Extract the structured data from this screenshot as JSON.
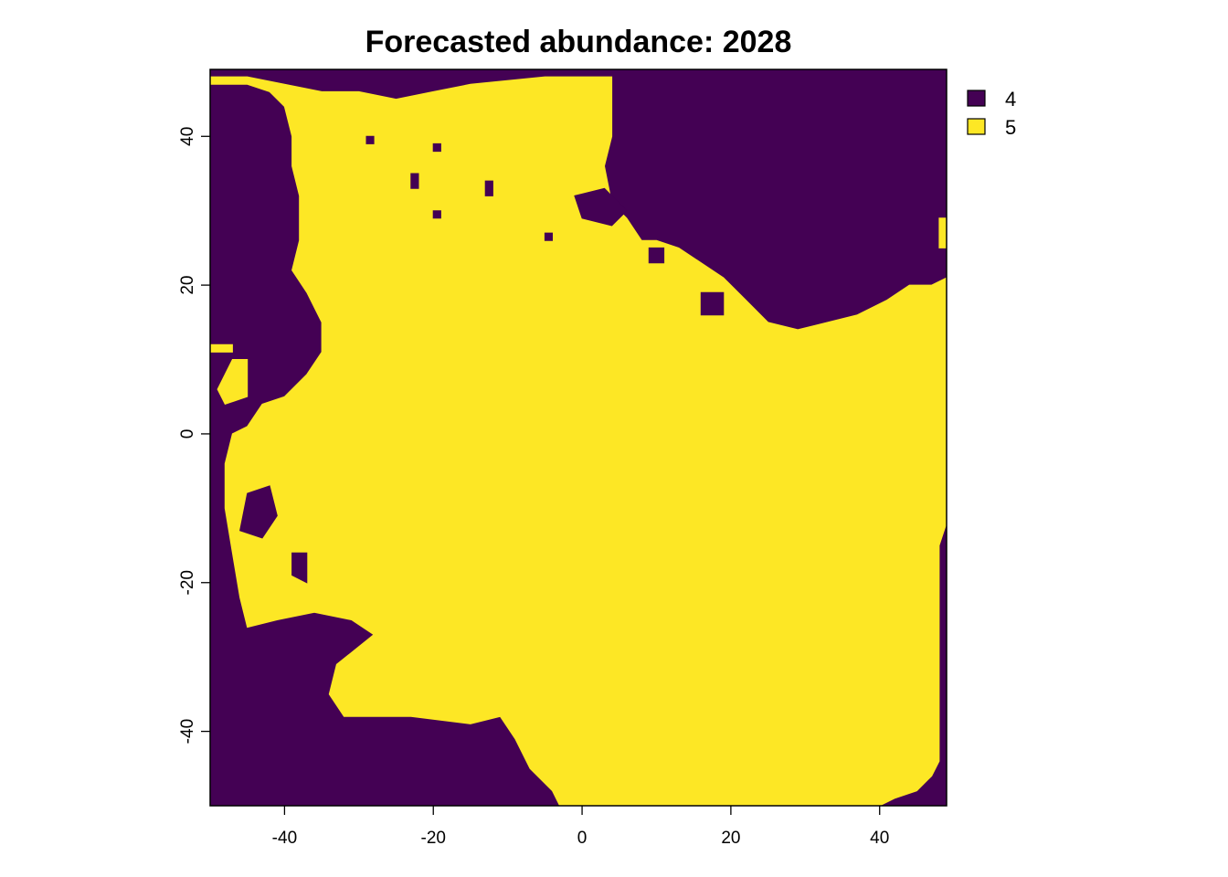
{
  "chart_data": {
    "type": "heatmap",
    "title": "Forecasted abundance: 2028",
    "xlabel": "",
    "ylabel": "",
    "xlim": [
      -50,
      49
    ],
    "ylim": [
      -50,
      49
    ],
    "x_ticks": [
      -40,
      -20,
      0,
      20,
      40
    ],
    "y_ticks": [
      -40,
      -20,
      0,
      20,
      40
    ],
    "legend_position": "top-right",
    "grid": false,
    "colors": {
      "4": "#440154",
      "5": "#FDE725"
    },
    "legend": [
      {
        "value": "4",
        "label": "4",
        "color": "#440154"
      },
      {
        "value": "5",
        "label": "5",
        "color": "#FDE725"
      }
    ],
    "background_value": "4",
    "regions_value_5": [
      {
        "name": "main-region",
        "outline": [
          [
            -50,
            47
          ],
          [
            -45,
            47
          ],
          [
            -42,
            46
          ],
          [
            -40,
            44
          ],
          [
            -39,
            40
          ],
          [
            -39,
            36
          ],
          [
            -38,
            32
          ],
          [
            -38,
            26
          ],
          [
            -39,
            22
          ],
          [
            -37,
            19
          ],
          [
            -35,
            15
          ],
          [
            -35,
            11
          ],
          [
            -37,
            8
          ],
          [
            -40,
            5
          ],
          [
            -43,
            4
          ],
          [
            -45,
            1
          ],
          [
            -47,
            0
          ],
          [
            -48,
            -4
          ],
          [
            -48,
            -10
          ],
          [
            -47,
            -16
          ],
          [
            -46,
            -22
          ],
          [
            -45,
            -26
          ],
          [
            -41,
            -25
          ],
          [
            -36,
            -24
          ],
          [
            -31,
            -25
          ],
          [
            -28,
            -27
          ],
          [
            -33,
            -31
          ],
          [
            -34,
            -35
          ],
          [
            -32,
            -38
          ],
          [
            -29,
            -38
          ],
          [
            -23,
            -38
          ],
          [
            -15,
            -39
          ],
          [
            -11,
            -38
          ],
          [
            -9,
            -41
          ],
          [
            -7,
            -45
          ],
          [
            -4,
            -48
          ],
          [
            -3,
            -50
          ],
          [
            40,
            -50
          ],
          [
            42,
            -49
          ],
          [
            45,
            -48
          ],
          [
            47,
            -46
          ],
          [
            48,
            -44
          ],
          [
            48,
            -36
          ],
          [
            48,
            -29
          ],
          [
            48,
            -22
          ],
          [
            48,
            -15
          ],
          [
            49,
            -12
          ],
          [
            49,
            8
          ],
          [
            49,
            21
          ],
          [
            47,
            20
          ],
          [
            44,
            20
          ],
          [
            41,
            18
          ],
          [
            37,
            16
          ],
          [
            33,
            15
          ],
          [
            29,
            14
          ],
          [
            25,
            15
          ],
          [
            22,
            18
          ],
          [
            19,
            21
          ],
          [
            16,
            23
          ],
          [
            13,
            25
          ],
          [
            10,
            26
          ],
          [
            8,
            26
          ],
          [
            6,
            29
          ],
          [
            4,
            31
          ],
          [
            3,
            36
          ],
          [
            4,
            40
          ],
          [
            4,
            45
          ],
          [
            4,
            48
          ],
          [
            -5,
            48
          ],
          [
            -15,
            47
          ],
          [
            -20,
            46
          ],
          [
            -25,
            45
          ],
          [
            -30,
            46
          ],
          [
            -35,
            46
          ],
          [
            -40,
            47
          ],
          [
            -45,
            48
          ],
          [
            -50,
            48
          ]
        ]
      },
      {
        "name": "north-east-strip",
        "outline": [
          [
            48,
            29
          ],
          [
            49,
            29
          ],
          [
            49,
            25
          ],
          [
            48,
            25
          ]
        ]
      },
      {
        "name": "west-strip",
        "outline": [
          [
            -50,
            12
          ],
          [
            -47,
            12
          ],
          [
            -47,
            11
          ],
          [
            -50,
            11
          ]
        ]
      },
      {
        "name": "west-pocket",
        "outline": [
          [
            -47,
            10
          ],
          [
            -45,
            10
          ],
          [
            -45,
            5
          ],
          [
            -48,
            4
          ],
          [
            -49,
            6
          ]
        ]
      }
    ],
    "regions_value_4": [
      {
        "name": "south-west-inlet",
        "outline": [
          [
            -45,
            -8
          ],
          [
            -42,
            -7
          ],
          [
            -41,
            -11
          ],
          [
            -43,
            -14
          ],
          [
            -46,
            -13
          ]
        ]
      },
      {
        "name": "south-west-inlet-2",
        "outline": [
          [
            -39,
            -16
          ],
          [
            -37,
            -16
          ],
          [
            -37,
            -20
          ],
          [
            -39,
            -19
          ]
        ]
      },
      {
        "name": "north-hole-1",
        "outline": [
          [
            -29,
            40
          ],
          [
            -28,
            40
          ],
          [
            -28,
            39
          ],
          [
            -29,
            39
          ]
        ]
      },
      {
        "name": "north-hole-2",
        "outline": [
          [
            -20,
            39
          ],
          [
            -19,
            39
          ],
          [
            -19,
            38
          ],
          [
            -20,
            38
          ]
        ]
      },
      {
        "name": "north-hole-3",
        "outline": [
          [
            -23,
            35
          ],
          [
            -22,
            35
          ],
          [
            -22,
            33
          ],
          [
            -23,
            33
          ]
        ]
      },
      {
        "name": "north-hole-4",
        "outline": [
          [
            -13,
            34
          ],
          [
            -12,
            34
          ],
          [
            -12,
            32
          ],
          [
            -13,
            32
          ]
        ]
      },
      {
        "name": "north-hole-5",
        "outline": [
          [
            -20,
            30
          ],
          [
            -19,
            30
          ],
          [
            -19,
            29
          ],
          [
            -20,
            29
          ]
        ]
      },
      {
        "name": "north-hole-6",
        "outline": [
          [
            -5,
            27
          ],
          [
            -4,
            27
          ],
          [
            -4,
            26
          ],
          [
            -5,
            26
          ]
        ]
      },
      {
        "name": "east-bay-spur",
        "outline": [
          [
            -1,
            32
          ],
          [
            3,
            33
          ],
          [
            6,
            30
          ],
          [
            4,
            28
          ],
          [
            0,
            29
          ]
        ]
      },
      {
        "name": "central-east-spot",
        "outline": [
          [
            9,
            25
          ],
          [
            11,
            25
          ],
          [
            11,
            23
          ],
          [
            9,
            23
          ]
        ]
      },
      {
        "name": "east-spot",
        "outline": [
          [
            16,
            19
          ],
          [
            19,
            19
          ],
          [
            19,
            16
          ],
          [
            16,
            16
          ]
        ]
      }
    ]
  }
}
